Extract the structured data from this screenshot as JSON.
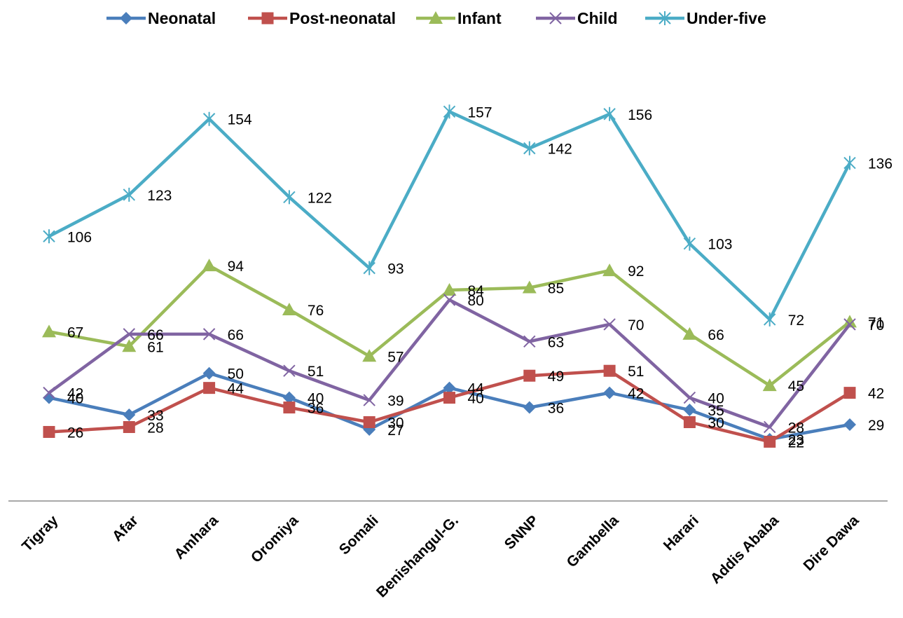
{
  "chart_data": {
    "type": "line",
    "categories": [
      "Tigray",
      "Afar",
      "Amhara",
      "Oromiya",
      "Somali",
      "Benishangul-G.",
      "SNNP",
      "Gambella",
      "Harari",
      "Addis Ababa",
      "Dire Dawa"
    ],
    "series": [
      {
        "name": "Neonatal",
        "color": "#4a7ebb",
        "marker": "diamond",
        "values": [
          40,
          33,
          50,
          40,
          27,
          44,
          36,
          42,
          35,
          23,
          29
        ]
      },
      {
        "name": "Post-neonatal",
        "color": "#c0504d",
        "marker": "square",
        "values": [
          26,
          28,
          44,
          36,
          30,
          40,
          49,
          51,
          30,
          22,
          42
        ]
      },
      {
        "name": "Infant",
        "color": "#9bbb59",
        "marker": "triangle",
        "values": [
          67,
          61,
          94,
          76,
          57,
          84,
          85,
          92,
          66,
          45,
          71
        ]
      },
      {
        "name": "Child",
        "color": "#8064a2",
        "marker": "x",
        "values": [
          42,
          66,
          66,
          51,
          39,
          80,
          63,
          70,
          40,
          28,
          70
        ]
      },
      {
        "name": "Under-five",
        "color": "#4bacc6",
        "marker": "asterisk",
        "values": [
          106,
          123,
          154,
          122,
          93,
          157,
          142,
          156,
          103,
          72,
          136
        ]
      }
    ],
    "title": "",
    "xlabel": "",
    "ylabel": "",
    "ylim": [
      0,
      180
    ],
    "grid": false,
    "legend": "top"
  }
}
